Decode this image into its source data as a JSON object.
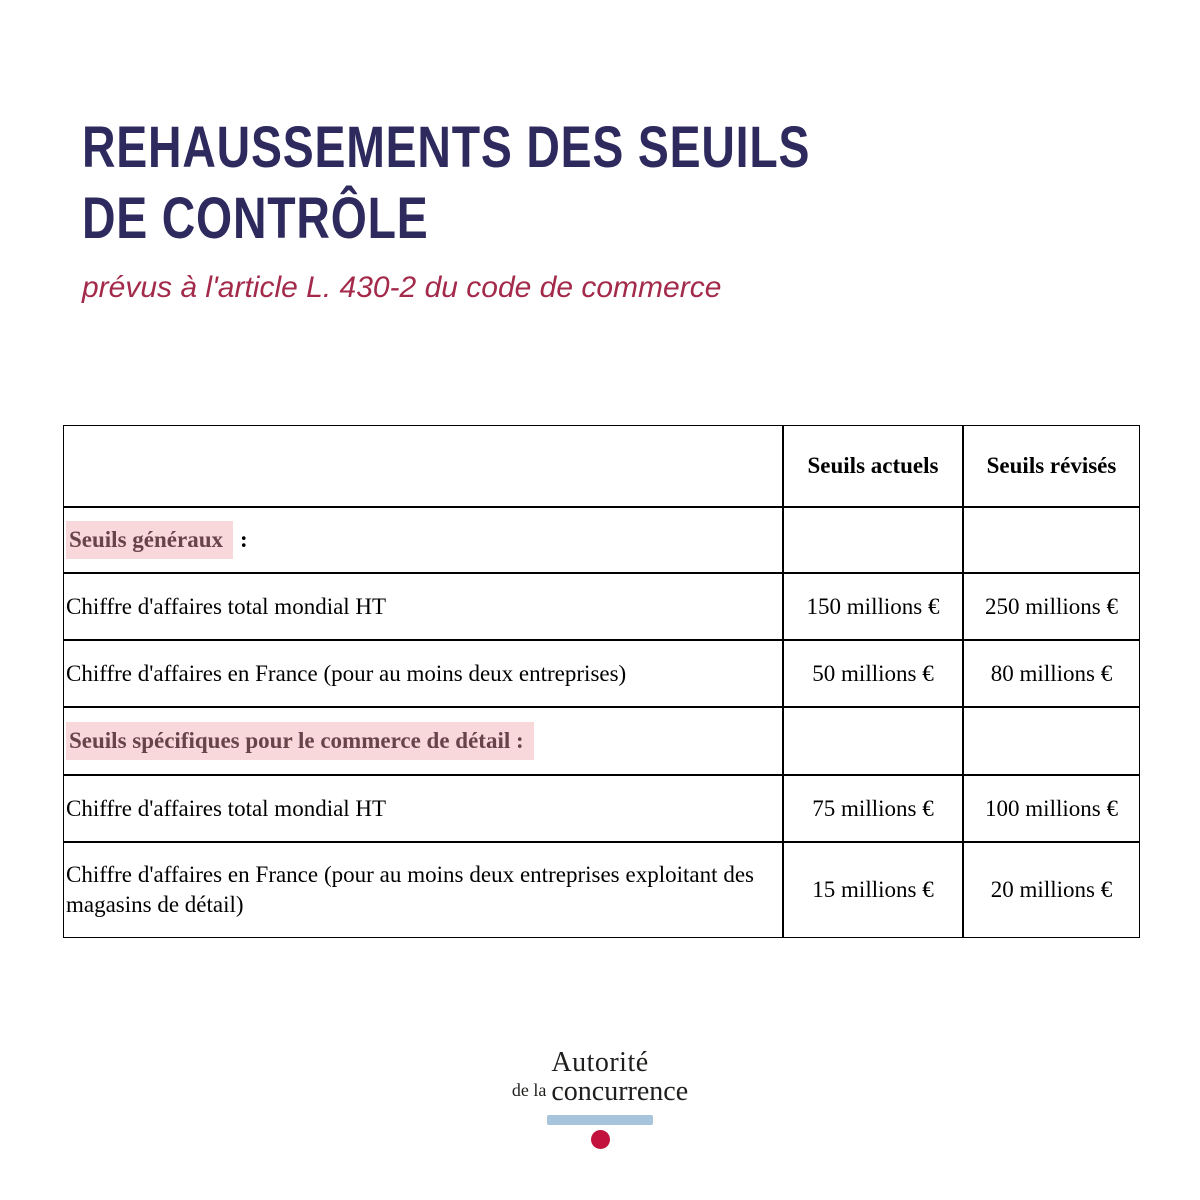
{
  "header": {
    "title_line1": "REHAUSSEMENTS DES SEUILS",
    "title_line2": "DE CONTRÔLE",
    "subtitle": "prévus à l'article L. 430-2 du code de commerce"
  },
  "table": {
    "col_headers": [
      "Seuils actuels",
      "Seuils révisés"
    ],
    "rows": [
      {
        "highlight_label": "Seuils généraux",
        "suffix": ":",
        "actuel": "",
        "revise": ""
      },
      {
        "label": "Chiffre d'affaires total mondial HT",
        "actuel": "150 millions €",
        "revise": "250 millions €"
      },
      {
        "label": "Chiffre d'affaires en France (pour au moins deux entreprises)",
        "actuel": "50 millions €",
        "revise": "80 millions €"
      },
      {
        "highlight_label": "Seuils spécifiques pour le commerce de détail :",
        "suffix": "",
        "actuel": "",
        "revise": ""
      },
      {
        "label": "Chiffre d'affaires total mondial HT",
        "actuel": "75 millions €",
        "revise": "100 millions €"
      },
      {
        "label": "Chiffre d'affaires en France (pour au moins deux entreprises exploitant des magasins de détail)",
        "actuel": "15 millions €",
        "revise": "20 millions €"
      }
    ]
  },
  "logo": {
    "line1": "Autorité",
    "line2_small": "de la",
    "line2_main": "concurrence"
  },
  "colors": {
    "title": "#2e2a5e",
    "subtitle": "#a32a4a",
    "highlight_bg": "#f8d8da",
    "highlight_text": "#684349",
    "logo_bar": "#a6c4dc",
    "logo_dot": "#c1113c"
  }
}
